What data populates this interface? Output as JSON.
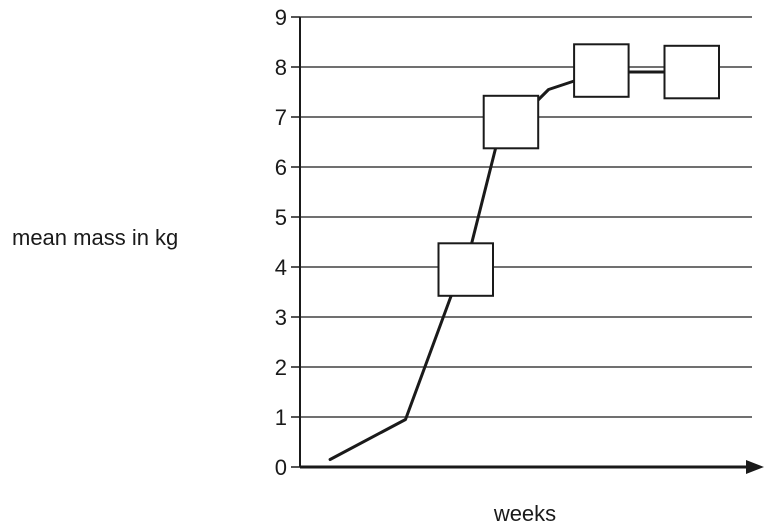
{
  "chart_data": {
    "type": "line",
    "title": "",
    "xlabel": "weeks",
    "ylabel": "mean mass in kg",
    "ylim": [
      0,
      9
    ],
    "yticks": [
      "0",
      "1",
      "2",
      "3",
      "4",
      "5",
      "6",
      "7",
      "8",
      "9"
    ],
    "grid": true,
    "line_points": [
      {
        "x": 0.4,
        "y": 0.15
      },
      {
        "x": 1.4,
        "y": 0.95
      },
      {
        "x": 2.0,
        "y": 3.4
      },
      {
        "x": 2.2,
        "y": 4.0
      },
      {
        "x": 2.6,
        "y": 6.4
      },
      {
        "x": 2.8,
        "y": 6.9
      },
      {
        "x": 3.0,
        "y": 7.1
      },
      {
        "x": 3.3,
        "y": 7.55
      },
      {
        "x": 4.0,
        "y": 7.9
      },
      {
        "x": 5.2,
        "y": 7.9
      }
    ],
    "markers": [
      {
        "x": 2.2,
        "y": 3.95
      },
      {
        "x": 2.8,
        "y": 6.9
      },
      {
        "x": 4.0,
        "y": 7.93
      },
      {
        "x": 5.2,
        "y": 7.9
      }
    ]
  }
}
